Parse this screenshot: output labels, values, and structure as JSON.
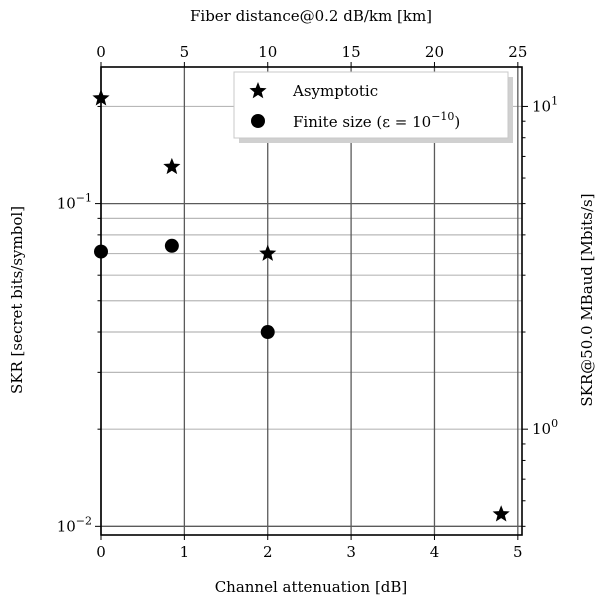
{
  "chart_data": {
    "type": "scatter",
    "xlabel": "Channel attenuation [dB]",
    "ylabel": "SKR [secret bits/symbol]",
    "top_xlabel": "Fiber distance@0.2 dB/km [km]",
    "right_ylabel": "SKR@50.0 MBaud [Mbits/s]",
    "xlim": [
      0,
      5.05
    ],
    "ylim": [
      0.0094,
      0.265
    ],
    "yscale": "log",
    "x_ticks": [
      "0",
      "1",
      "2",
      "3",
      "4",
      "5"
    ],
    "y_ticks": [
      {
        "value": 0.01,
        "base": "10",
        "exp": "−2"
      },
      {
        "value": 0.1,
        "base": "10",
        "exp": "−1"
      }
    ],
    "top_ticks": [
      "0",
      "5",
      "10",
      "15",
      "20",
      "25"
    ],
    "top_km_per_db": 5,
    "right_ticks": [
      {
        "base": "10",
        "exp": "0",
        "mbits": 1
      },
      {
        "base": "10",
        "exp": "1",
        "mbits": 10
      }
    ],
    "baud_mbaud": 50.0,
    "grid": true,
    "legend_position": "upper right",
    "series": [
      {
        "name": "Asymptotic",
        "marker": "star",
        "color": "#000000",
        "points": [
          [
            0.0,
            0.212
          ],
          [
            0.85,
            0.13
          ],
          [
            2.0,
            0.07
          ],
          [
            4.8,
            0.0109
          ]
        ]
      },
      {
        "name": "Finite size (ε = 10",
        "name_exp": "−10",
        "name_suffix": ")",
        "marker": "circle",
        "color": "#000000",
        "points": [
          [
            0.0,
            0.071
          ],
          [
            0.85,
            0.074
          ],
          [
            2.0,
            0.04
          ]
        ]
      }
    ]
  }
}
